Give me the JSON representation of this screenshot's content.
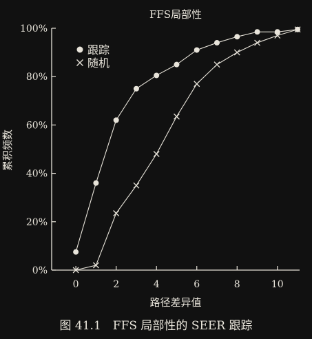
{
  "chart_data": {
    "type": "line",
    "title": "FFS局部性",
    "xlabel": "路径差异值",
    "ylabel": "累积频数",
    "xlim": [
      -1.2,
      11.1
    ],
    "ylim": [
      0,
      100
    ],
    "xticks": [
      0,
      2,
      4,
      6,
      8,
      10
    ],
    "yticks": [
      0,
      20,
      40,
      60,
      80,
      100
    ],
    "ytick_labels": [
      "0%",
      "20%",
      "40%",
      "60%",
      "80%",
      "100%"
    ],
    "legend_position": "top-left",
    "grid": false,
    "series": [
      {
        "name": "跟踪",
        "marker": "circle",
        "x": [
          0,
          1,
          2,
          3,
          4,
          5,
          6,
          7,
          8,
          9,
          10,
          11
        ],
        "values": [
          7.5,
          36,
          62,
          75,
          80.5,
          85,
          91,
          94,
          96.5,
          98.5,
          98.5,
          99.5
        ]
      },
      {
        "name": "随机",
        "marker": "x",
        "x": [
          0,
          1,
          2,
          3,
          4,
          5,
          6,
          7,
          8,
          9,
          10,
          11
        ],
        "values": [
          0,
          2,
          23.5,
          35,
          48,
          63.5,
          77,
          85,
          90,
          94,
          97,
          99.5
        ]
      }
    ]
  },
  "caption": "图 41.1　FFS 局部性的 SEER 跟踪",
  "colors": {
    "background": "#111111",
    "ink": "#e8e4da"
  }
}
